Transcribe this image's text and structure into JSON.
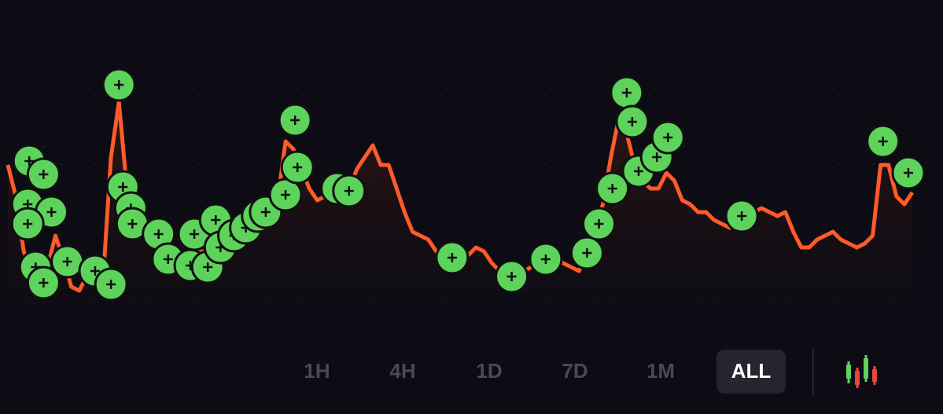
{
  "chart_data": {
    "type": "line",
    "color": "#ff5a2a",
    "marker_color": "#5dd35b",
    "xlim": [
      0,
      1140
    ],
    "ylim": [
      0,
      420
    ],
    "values": [
      210,
      170,
      100,
      70,
      60,
      80,
      120,
      90,
      55,
      50,
      70,
      75,
      65,
      220,
      290,
      180,
      140,
      120,
      110,
      120,
      105,
      100,
      90,
      90,
      100,
      100,
      120,
      120,
      125,
      130,
      135,
      140,
      145,
      155,
      165,
      240,
      230,
      205,
      180,
      165,
      170,
      175,
      175,
      180,
      205,
      220,
      235,
      210,
      210,
      180,
      150,
      125,
      120,
      115,
      100,
      90,
      90,
      95,
      95,
      105,
      100,
      85,
      75,
      70,
      70,
      75,
      80,
      85,
      90,
      90,
      85,
      80,
      75,
      100,
      130,
      160,
      220,
      270,
      250,
      210,
      190,
      180,
      180,
      200,
      190,
      165,
      160,
      150,
      150,
      140,
      135,
      130,
      145,
      140,
      150,
      155,
      150,
      145,
      150,
      125,
      105,
      105,
      115,
      120,
      125,
      115,
      110,
      105,
      110,
      120,
      210,
      210,
      170,
      160,
      175
    ],
    "markers": {
      "x": [
        27,
        45,
        25,
        55,
        25,
        35,
        75,
        45,
        110,
        130,
        140,
        145,
        155,
        157,
        190,
        202,
        235,
        230,
        252,
        262,
        268,
        285,
        300,
        315,
        325,
        350,
        365,
        362,
        415,
        430,
        560,
        635,
        678,
        730,
        745,
        762,
        780,
        787,
        795,
        818,
        832,
        925,
        1103,
        1135
      ],
      "values": [
        215,
        198,
        160,
        150,
        135,
        80,
        87,
        60,
        75,
        58,
        312,
        182,
        155,
        135,
        122,
        90,
        122,
        82,
        80,
        140,
        105,
        120,
        130,
        145,
        150,
        172,
        207,
        267,
        180,
        177,
        92,
        68,
        90,
        98,
        135,
        180,
        302,
        265,
        202,
        220,
        245,
        145,
        240,
        200
      ]
    },
    "tabs": [
      "1H",
      "4H",
      "1D",
      "7D",
      "1M",
      "ALL"
    ],
    "selected_tab": 5
  }
}
